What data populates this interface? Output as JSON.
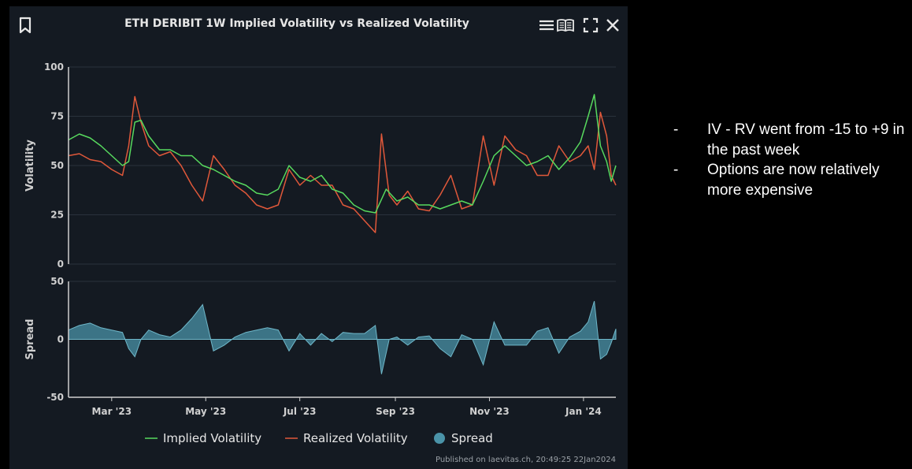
{
  "header": {
    "title": "ETH DERIBIT 1W Implied Volatility vs Realized Volatility",
    "icons": [
      "bookmark-icon",
      "menu-icon",
      "book-icon",
      "fullscreen-icon",
      "close-icon"
    ]
  },
  "footer": {
    "published": "Published on laevitas.ch, 20:49:25 22Jan2024"
  },
  "notes": {
    "items": [
      {
        "bullet": "-",
        "text": "IV - RV went from -15 to +9 in the past week"
      },
      {
        "bullet": "-",
        "text": "Options are now relatively more expensive"
      }
    ]
  },
  "colors": {
    "iv": "#57d95e",
    "rv": "#e0583a",
    "spread": "#4a93a8",
    "grid": "#2a323c",
    "axis": "#d0d0d0",
    "background": "#141a22"
  },
  "chart_data": {
    "type": "line",
    "title": "ETH DERIBIT 1W Implied Volatility vs Realized Volatility",
    "x_start": "2023-02-01",
    "x_end": "2024-01-22",
    "x_ticks": [
      "Mar '23",
      "May '23",
      "Jul '23",
      "Sep '23",
      "Nov '23",
      "Jan '24"
    ],
    "x_tick_dates": [
      "2023-03-01",
      "2023-05-01",
      "2023-07-01",
      "2023-09-01",
      "2023-11-01",
      "2024-01-01"
    ],
    "top": {
      "ylabel": "Volatility",
      "ylim": [
        0,
        100
      ],
      "yticks": [
        0,
        25,
        50,
        75,
        100
      ]
    },
    "bottom": {
      "ylabel": "Spread",
      "ylim": [
        -50,
        50
      ],
      "yticks": [
        -50,
        0,
        50
      ]
    },
    "legend": [
      "Implied Volatility",
      "Realized Volatility",
      "Spread"
    ],
    "legend_position": "bottom-center",
    "series": [
      {
        "name": "Implied Volatility",
        "points": [
          [
            "2023-02-01",
            63
          ],
          [
            "2023-02-08",
            66
          ],
          [
            "2023-02-15",
            64
          ],
          [
            "2023-02-22",
            60
          ],
          [
            "2023-03-01",
            55
          ],
          [
            "2023-03-08",
            50
          ],
          [
            "2023-03-12",
            52
          ],
          [
            "2023-03-16",
            72
          ],
          [
            "2023-03-20",
            73
          ],
          [
            "2023-03-25",
            65
          ],
          [
            "2023-04-01",
            58
          ],
          [
            "2023-04-08",
            58
          ],
          [
            "2023-04-15",
            55
          ],
          [
            "2023-04-22",
            55
          ],
          [
            "2023-04-29",
            50
          ],
          [
            "2023-05-06",
            48
          ],
          [
            "2023-05-13",
            45
          ],
          [
            "2023-05-20",
            42
          ],
          [
            "2023-05-27",
            40
          ],
          [
            "2023-06-03",
            36
          ],
          [
            "2023-06-10",
            35
          ],
          [
            "2023-06-17",
            38
          ],
          [
            "2023-06-24",
            50
          ],
          [
            "2023-07-01",
            44
          ],
          [
            "2023-07-08",
            42
          ],
          [
            "2023-07-15",
            45
          ],
          [
            "2023-07-22",
            38
          ],
          [
            "2023-07-29",
            36
          ],
          [
            "2023-08-05",
            30
          ],
          [
            "2023-08-12",
            27
          ],
          [
            "2023-08-19",
            26
          ],
          [
            "2023-08-26",
            38
          ],
          [
            "2023-09-02",
            32
          ],
          [
            "2023-09-09",
            34
          ],
          [
            "2023-09-16",
            30
          ],
          [
            "2023-09-23",
            30
          ],
          [
            "2023-09-30",
            28
          ],
          [
            "2023-10-07",
            30
          ],
          [
            "2023-10-14",
            32
          ],
          [
            "2023-10-21",
            30
          ],
          [
            "2023-10-28",
            42
          ],
          [
            "2023-11-04",
            55
          ],
          [
            "2023-11-11",
            60
          ],
          [
            "2023-11-18",
            55
          ],
          [
            "2023-11-25",
            50
          ],
          [
            "2023-12-02",
            52
          ],
          [
            "2023-12-09",
            55
          ],
          [
            "2023-12-16",
            48
          ],
          [
            "2023-12-23",
            54
          ],
          [
            "2023-12-30",
            62
          ],
          [
            "2024-01-04",
            75
          ],
          [
            "2024-01-08",
            86
          ],
          [
            "2024-01-12",
            60
          ],
          [
            "2024-01-16",
            52
          ],
          [
            "2024-01-19",
            42
          ],
          [
            "2024-01-22",
            50
          ]
        ]
      },
      {
        "name": "Realized Volatility",
        "points": [
          [
            "2023-02-01",
            55
          ],
          [
            "2023-02-08",
            56
          ],
          [
            "2023-02-15",
            53
          ],
          [
            "2023-02-22",
            52
          ],
          [
            "2023-03-01",
            48
          ],
          [
            "2023-03-08",
            45
          ],
          [
            "2023-03-12",
            60
          ],
          [
            "2023-03-16",
            85
          ],
          [
            "2023-03-20",
            72
          ],
          [
            "2023-03-25",
            60
          ],
          [
            "2023-04-01",
            55
          ],
          [
            "2023-04-08",
            57
          ],
          [
            "2023-04-15",
            50
          ],
          [
            "2023-04-22",
            40
          ],
          [
            "2023-04-29",
            32
          ],
          [
            "2023-05-06",
            55
          ],
          [
            "2023-05-13",
            48
          ],
          [
            "2023-05-20",
            40
          ],
          [
            "2023-05-27",
            36
          ],
          [
            "2023-06-03",
            30
          ],
          [
            "2023-06-10",
            28
          ],
          [
            "2023-06-17",
            30
          ],
          [
            "2023-06-24",
            48
          ],
          [
            "2023-07-01",
            40
          ],
          [
            "2023-07-08",
            45
          ],
          [
            "2023-07-15",
            40
          ],
          [
            "2023-07-22",
            40
          ],
          [
            "2023-07-29",
            30
          ],
          [
            "2023-08-05",
            28
          ],
          [
            "2023-08-12",
            22
          ],
          [
            "2023-08-19",
            16
          ],
          [
            "2023-08-23",
            66
          ],
          [
            "2023-08-28",
            35
          ],
          [
            "2023-09-02",
            30
          ],
          [
            "2023-09-09",
            37
          ],
          [
            "2023-09-16",
            28
          ],
          [
            "2023-09-23",
            27
          ],
          [
            "2023-09-30",
            35
          ],
          [
            "2023-10-07",
            45
          ],
          [
            "2023-10-14",
            28
          ],
          [
            "2023-10-21",
            30
          ],
          [
            "2023-10-28",
            65
          ],
          [
            "2023-11-04",
            40
          ],
          [
            "2023-11-11",
            65
          ],
          [
            "2023-11-18",
            58
          ],
          [
            "2023-11-25",
            55
          ],
          [
            "2023-12-02",
            45
          ],
          [
            "2023-12-09",
            45
          ],
          [
            "2023-12-16",
            60
          ],
          [
            "2023-12-23",
            52
          ],
          [
            "2023-12-30",
            55
          ],
          [
            "2024-01-04",
            60
          ],
          [
            "2024-01-08",
            48
          ],
          [
            "2024-01-12",
            77
          ],
          [
            "2024-01-16",
            65
          ],
          [
            "2024-01-19",
            45
          ],
          [
            "2024-01-22",
            40
          ]
        ]
      },
      {
        "name": "Spread",
        "points": [
          [
            "2023-02-01",
            8
          ],
          [
            "2023-02-08",
            12
          ],
          [
            "2023-02-15",
            14
          ],
          [
            "2023-02-22",
            10
          ],
          [
            "2023-03-01",
            8
          ],
          [
            "2023-03-08",
            6
          ],
          [
            "2023-03-12",
            -8
          ],
          [
            "2023-03-16",
            -15
          ],
          [
            "2023-03-20",
            0
          ],
          [
            "2023-03-25",
            8
          ],
          [
            "2023-04-01",
            4
          ],
          [
            "2023-04-08",
            2
          ],
          [
            "2023-04-15",
            8
          ],
          [
            "2023-04-22",
            18
          ],
          [
            "2023-04-29",
            30
          ],
          [
            "2023-05-06",
            -10
          ],
          [
            "2023-05-13",
            -5
          ],
          [
            "2023-05-20",
            2
          ],
          [
            "2023-05-27",
            6
          ],
          [
            "2023-06-03",
            8
          ],
          [
            "2023-06-10",
            10
          ],
          [
            "2023-06-17",
            8
          ],
          [
            "2023-06-24",
            -10
          ],
          [
            "2023-07-01",
            5
          ],
          [
            "2023-07-08",
            -5
          ],
          [
            "2023-07-15",
            5
          ],
          [
            "2023-07-22",
            -2
          ],
          [
            "2023-07-29",
            6
          ],
          [
            "2023-08-05",
            5
          ],
          [
            "2023-08-12",
            5
          ],
          [
            "2023-08-19",
            12
          ],
          [
            "2023-08-23",
            -30
          ],
          [
            "2023-08-28",
            0
          ],
          [
            "2023-09-02",
            2
          ],
          [
            "2023-09-09",
            -5
          ],
          [
            "2023-09-16",
            2
          ],
          [
            "2023-09-23",
            3
          ],
          [
            "2023-09-30",
            -8
          ],
          [
            "2023-10-07",
            -15
          ],
          [
            "2023-10-14",
            4
          ],
          [
            "2023-10-21",
            0
          ],
          [
            "2023-10-28",
            -22
          ],
          [
            "2023-11-04",
            15
          ],
          [
            "2023-11-11",
            -5
          ],
          [
            "2023-11-18",
            -5
          ],
          [
            "2023-11-25",
            -5
          ],
          [
            "2023-12-02",
            7
          ],
          [
            "2023-12-09",
            10
          ],
          [
            "2023-12-16",
            -12
          ],
          [
            "2023-12-23",
            2
          ],
          [
            "2023-12-30",
            7
          ],
          [
            "2024-01-04",
            15
          ],
          [
            "2024-01-08",
            33
          ],
          [
            "2024-01-12",
            -17
          ],
          [
            "2024-01-16",
            -13
          ],
          [
            "2024-01-19",
            -3
          ],
          [
            "2024-01-22",
            9
          ]
        ]
      }
    ]
  }
}
